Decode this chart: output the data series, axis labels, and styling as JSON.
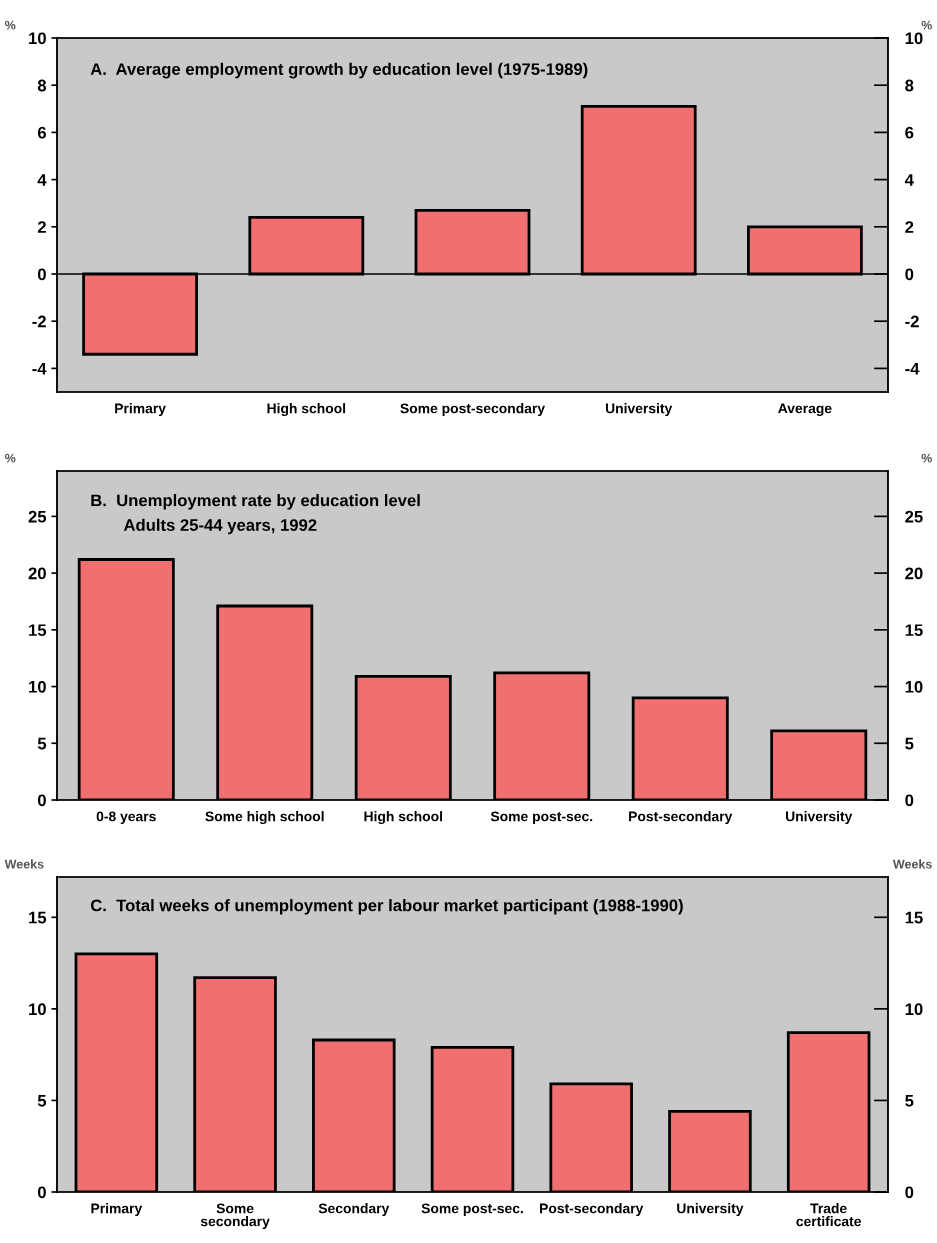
{
  "chart_data": [
    {
      "type": "bar",
      "title": "A.  Average employment growth by education level (1975-1989)",
      "ylabel": "%",
      "y2label": "%",
      "categories": [
        "Primary",
        "High school",
        "Some post-secondary",
        "University",
        "Average"
      ],
      "values": [
        -3.4,
        2.4,
        2.7,
        7.1,
        2.0
      ],
      "color": "#f07070",
      "ref_lines": [
        {
          "axis": "y",
          "value": 0,
          "color": "#000000"
        }
      ],
      "ylim": [
        -5,
        10
      ],
      "yticks": [
        -4,
        -2,
        0,
        2,
        4,
        6,
        8,
        10
      ],
      "y2lim": [
        -5,
        10
      ],
      "y2ticks": [
        -4,
        -2,
        0,
        2,
        4,
        6,
        8,
        10
      ],
      "grid": false,
      "legend": false
    },
    {
      "type": "bar",
      "title": "B.  Unemployment rate by education level",
      "subtitle": "Adults 25-44 years, 1992",
      "ylabel": "%",
      "y2label": "%",
      "categories": [
        "0-8 years",
        "Some high school",
        "High school",
        "Some post-sec.",
        "Post-secondary",
        "University"
      ],
      "values": [
        21.2,
        17.1,
        10.9,
        11.2,
        9.0,
        6.1
      ],
      "color": "#f07070",
      "ylim": [
        0,
        29
      ],
      "yticks": [
        0,
        5,
        10,
        15,
        20,
        25
      ],
      "y2lim": [
        0,
        29
      ],
      "y2ticks": [
        0,
        5,
        10,
        15,
        20,
        25
      ],
      "grid": false,
      "legend": false
    },
    {
      "type": "bar",
      "title": "C.  Total weeks of unemployment per labour market participant (1988-1990)",
      "ylabel": "Weeks",
      "y2label": "Weeks",
      "categories": [
        "Primary",
        "Some\nsecondary",
        "Secondary",
        "Some post-sec.",
        "Post-secondary",
        "University",
        "Trade\ncertificate"
      ],
      "values": [
        13.0,
        11.7,
        8.3,
        7.9,
        5.9,
        4.4,
        8.7
      ],
      "color": "#f07070",
      "ylim": [
        0,
        17.2
      ],
      "yticks": [
        0,
        5,
        10,
        15
      ],
      "y2lim": [
        0,
        17.2
      ],
      "y2ticks": [
        0,
        5,
        10,
        15
      ],
      "grid": false,
      "legend": false
    }
  ]
}
